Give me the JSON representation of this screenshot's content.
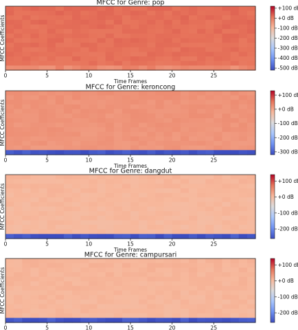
{
  "palette": [
    "#3b4cc0",
    "#6f92f3",
    "#aac7fd",
    "#dddcdc",
    "#f7b89c",
    "#e7745b",
    "#b40426"
  ],
  "chart_data": [
    {
      "type": "heatmap",
      "title": "MFCC for Genre: pop",
      "xlabel": "Time Frames",
      "ylabel": "MFCC Coefficients",
      "xticks": [
        "0",
        "5",
        "10",
        "15",
        "20",
        "25"
      ],
      "xlim": [
        0,
        30
      ],
      "colorbar": {
        "range_db": [
          -520,
          120
        ],
        "ticks": [
          "+100 dB",
          "+0 dB",
          "-100 dB",
          "-200 dB",
          "-300 dB",
          "-400 dB",
          "-500 dB"
        ],
        "tick_values": [
          100,
          0,
          -100,
          -200,
          -300,
          -400,
          -500
        ]
      },
      "dominant_db": 20,
      "bottom_row_db": -20
    },
    {
      "type": "heatmap",
      "title": "MFCC for Genre: keroncong",
      "xlabel": "Time Frames",
      "ylabel": "MFCC Coefficients",
      "xticks": [
        "0",
        "5",
        "10",
        "15",
        "20",
        "25"
      ],
      "xlim": [
        0,
        30
      ],
      "colorbar": {
        "range_db": [
          -320,
          130
        ],
        "ticks": [
          "+100 dB",
          "+0 dB",
          "-100 dB",
          "-200 dB",
          "-300 dB"
        ],
        "tick_values": [
          100,
          0,
          -100,
          -200,
          -300
        ]
      },
      "dominant_db": 22,
      "bottom_row_db": -310
    },
    {
      "type": "heatmap",
      "title": "MFCC for Genre: dangdut",
      "xlabel": "Time Frames",
      "ylabel": "MFCC Coefficients",
      "xticks": [
        "0",
        "5",
        "10",
        "15",
        "20",
        "25"
      ],
      "xlim": [
        0,
        30
      ],
      "colorbar": {
        "range_db": [
          -260,
          140
        ],
        "ticks": [
          "+100 dB",
          "+0 dB",
          "-100 dB",
          "-200 dB"
        ],
        "tick_values": [
          100,
          0,
          -100,
          -200
        ]
      },
      "dominant_db": 8,
      "bottom_row_db": -250
    },
    {
      "type": "heatmap",
      "title": "MFCC for Genre: campursari",
      "xlabel": "Time Frames",
      "ylabel": "MFCC Coefficients",
      "xticks": [
        "0",
        "5",
        "10",
        "15",
        "20",
        "25"
      ],
      "xlim": [
        0,
        30
      ],
      "colorbar": {
        "range_db": [
          -260,
          140
        ],
        "ticks": [
          "+100 dB",
          "+0 dB",
          "-100 dB",
          "-200 dB"
        ],
        "tick_values": [
          100,
          0,
          -100,
          -200
        ]
      },
      "dominant_db": 10,
      "bottom_row_db": -250
    }
  ]
}
